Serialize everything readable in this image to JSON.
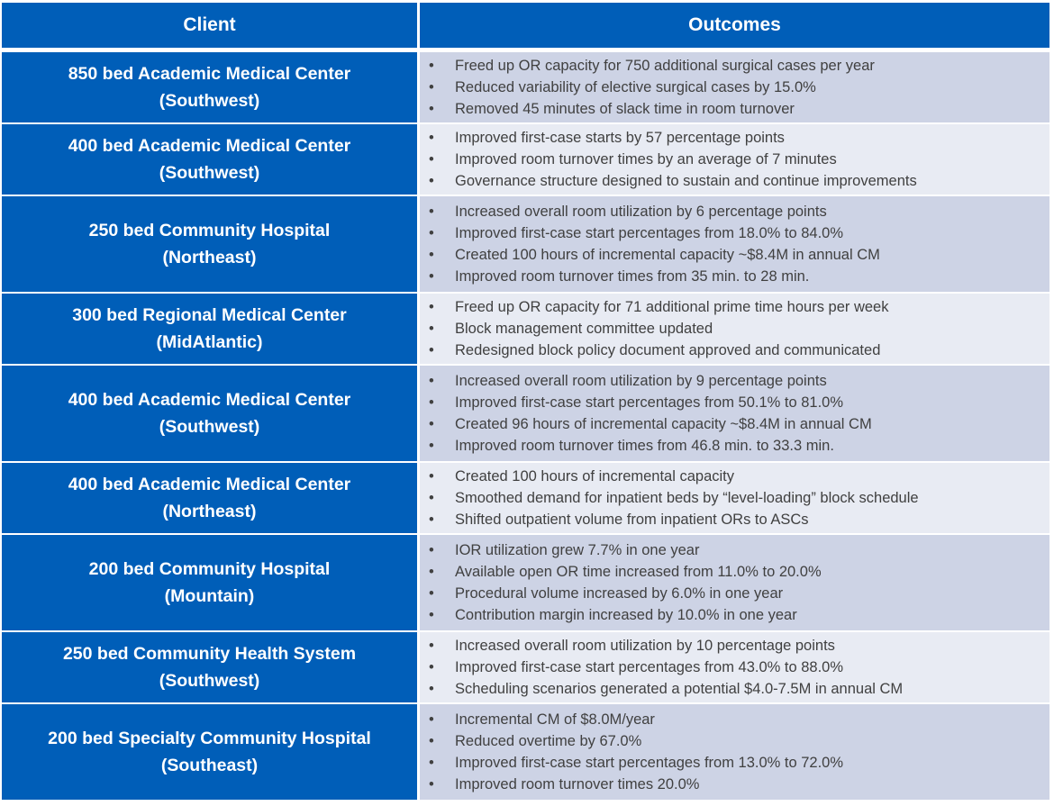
{
  "header": {
    "client": "Client",
    "outcomes": "Outcomes"
  },
  "colors": {
    "brand_blue": "#005EB8",
    "row_odd": "#CDD3E5",
    "row_even": "#E8EBF3",
    "text": "#404040"
  },
  "rows": [
    {
      "name": "850 bed Academic Medical Center",
      "region": "(Southwest)",
      "outcomes": [
        "Freed up OR capacity for 750 additional surgical cases per year",
        "Reduced variability of elective surgical cases by 15.0%",
        "Removed 45 minutes of slack time in room turnover"
      ]
    },
    {
      "name": "400 bed Academic Medical Center",
      "region": "(Southwest)",
      "outcomes": [
        "Improved first-case starts by 57 percentage points",
        "Improved room turnover times by an average of 7 minutes",
        "Governance structure designed to sustain and continue improvements"
      ]
    },
    {
      "name": "250 bed Community Hospital",
      "region": "(Northeast)",
      "outcomes": [
        "Increased overall room utilization by 6 percentage points",
        "Improved first-case start percentages from 18.0% to 84.0%",
        "Created 100 hours of incremental capacity ~$8.4M in annual CM",
        "Improved room turnover times from 35 min. to 28 min."
      ]
    },
    {
      "name": "300 bed Regional Medical Center",
      "region": "(MidAtlantic)",
      "outcomes": [
        "Freed up OR capacity for 71 additional prime time hours per week",
        "Block management committee updated",
        "Redesigned block policy document approved and communicated"
      ]
    },
    {
      "name": "400 bed Academic Medical Center",
      "region": "(Southwest)",
      "outcomes": [
        "Increased overall room utilization by 9 percentage points",
        "Improved first-case start percentages from 50.1% to 81.0%",
        "Created 96 hours of incremental capacity ~$8.4M in annual CM",
        "Improved room turnover times from 46.8 min. to 33.3 min."
      ]
    },
    {
      "name": "400 bed Academic Medical Center",
      "region": "(Northeast)",
      "outcomes": [
        "Created 100 hours of incremental capacity",
        "Smoothed demand for inpatient beds by “level-loading” block schedule",
        "Shifted outpatient volume from inpatient ORs to ASCs"
      ]
    },
    {
      "name": "200 bed Community Hospital",
      "region": "(Mountain)",
      "outcomes": [
        "IOR utilization grew 7.7% in one year",
        "Available open OR time increased from 11.0% to 20.0%",
        "Procedural volume increased by 6.0% in one year",
        "Contribution margin increased by 10.0% in one year"
      ]
    },
    {
      "name": "250 bed Community Health System",
      "region": "(Southwest)",
      "outcomes": [
        "Increased overall room utilization by 10 percentage points",
        "Improved first-case start percentages from 43.0% to 88.0%",
        "Scheduling scenarios generated a potential $4.0-7.5M in annual CM"
      ]
    },
    {
      "name": "200 bed Specialty Community Hospital",
      "region": "(Southeast)",
      "outcomes": [
        "Incremental CM of $8.0M/year",
        "Reduced overtime by 67.0%",
        "Improved first-case start percentages from 13.0% to 72.0%",
        "Improved room turnover times 20.0%"
      ]
    }
  ]
}
